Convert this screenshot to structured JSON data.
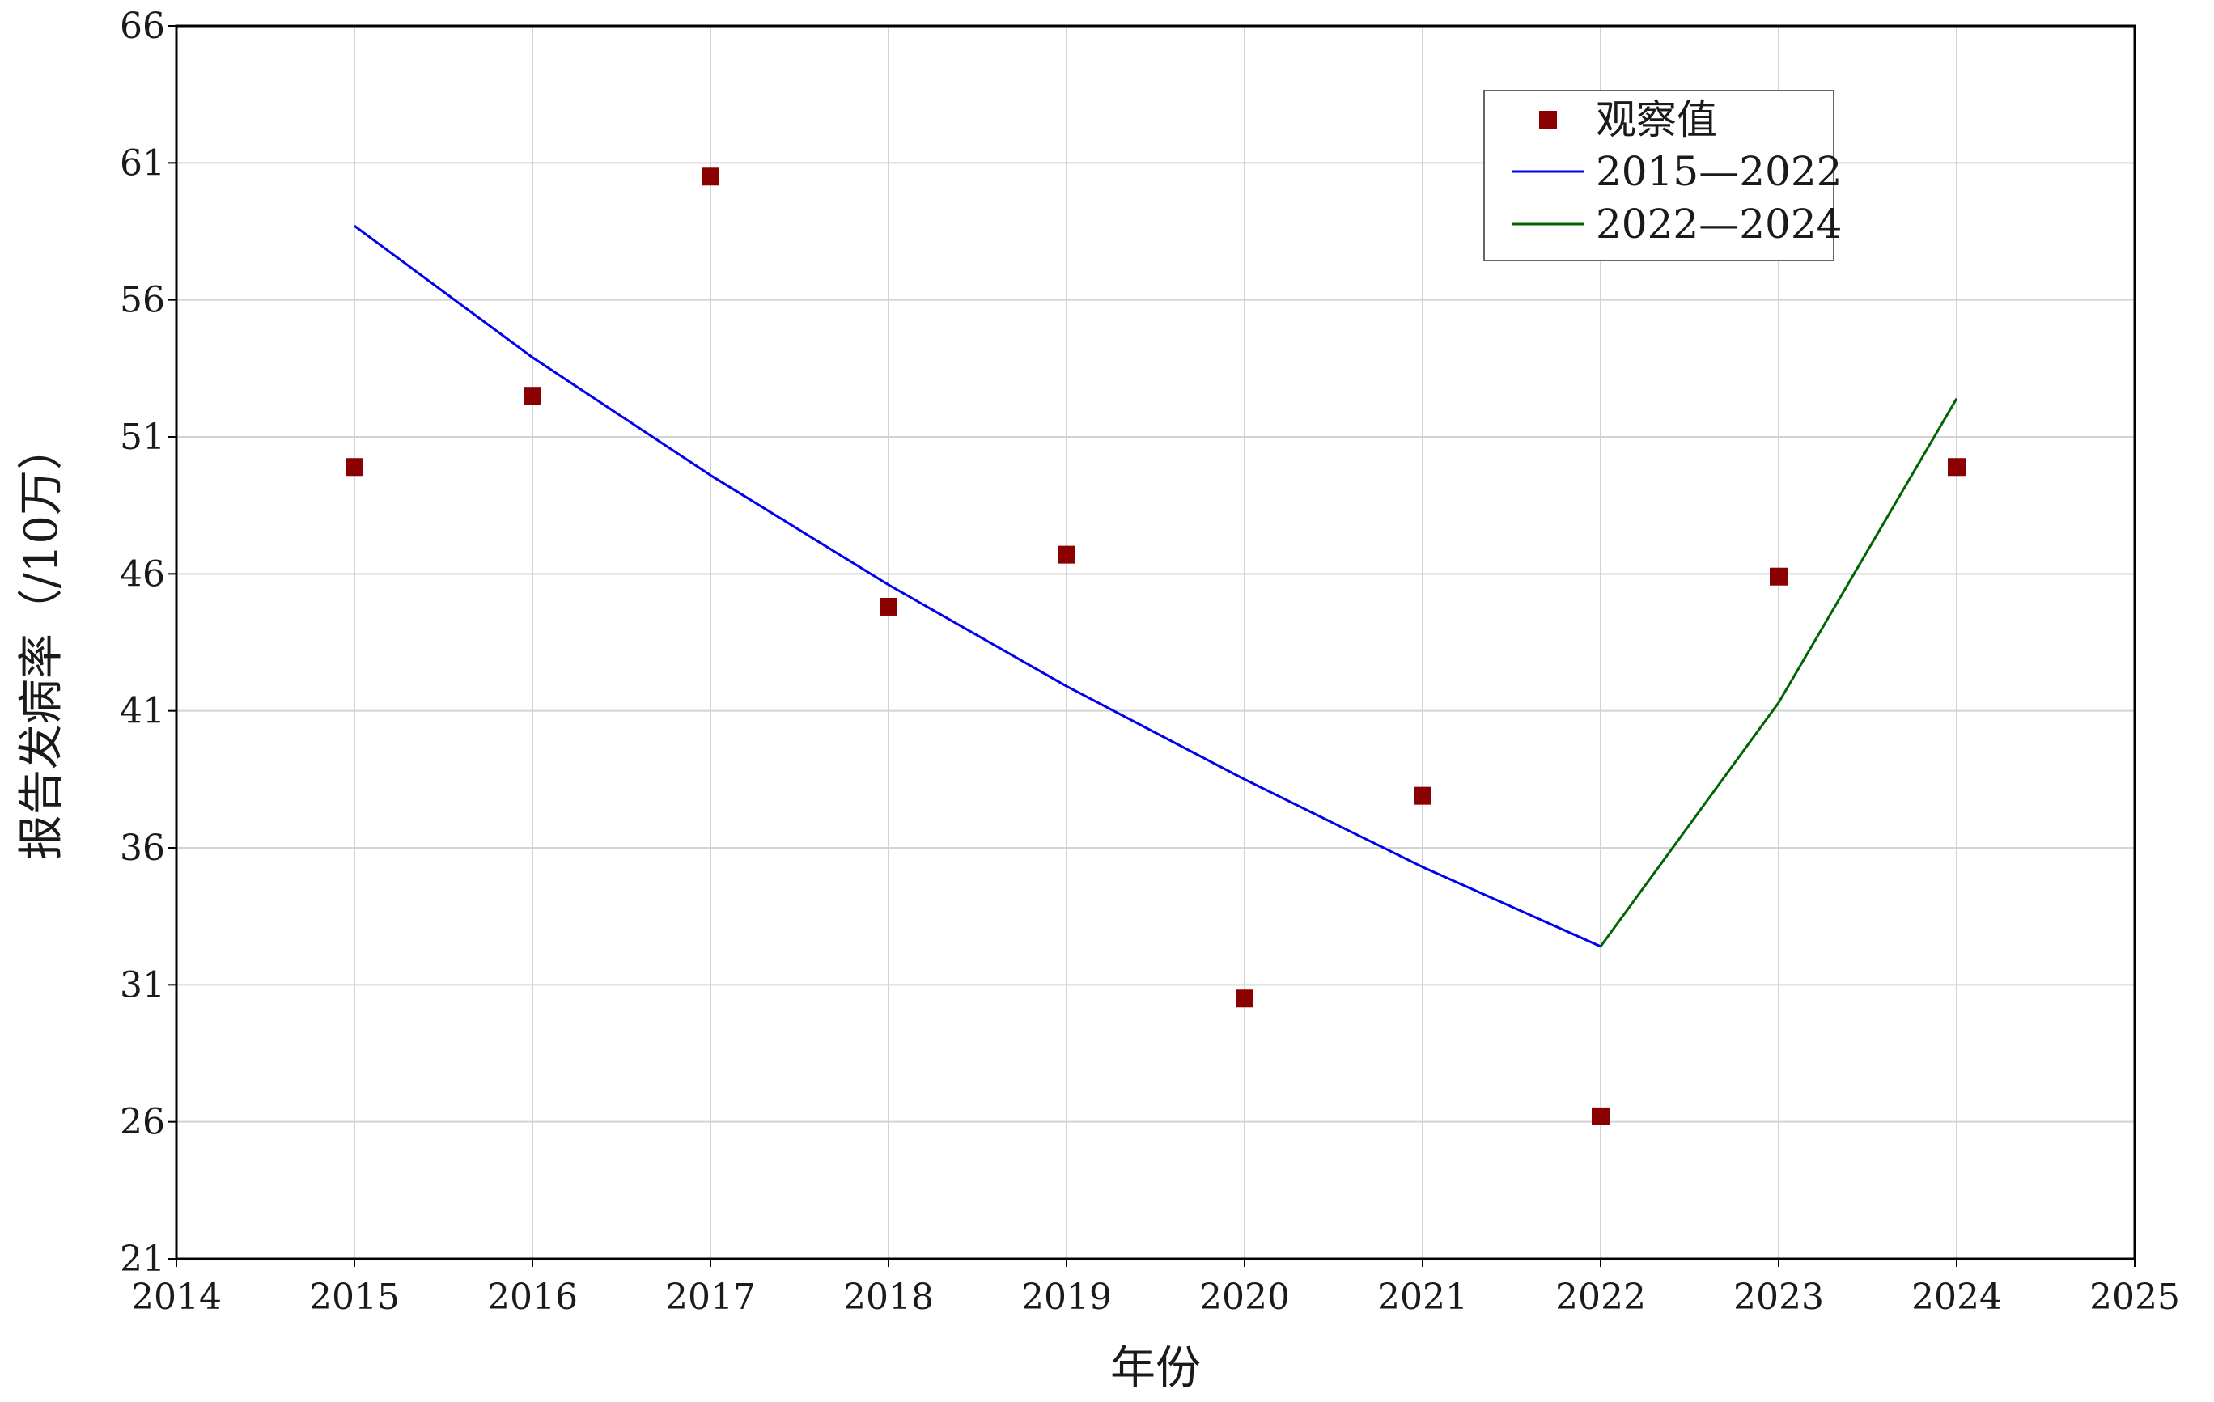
{
  "chart_data": {
    "type": "line",
    "title": "",
    "xlabel": "年份",
    "ylabel": "报告发病率（/10万）",
    "xlim": [
      2014,
      2025
    ],
    "ylim": [
      21,
      66
    ],
    "xticks": [
      2014,
      2015,
      2016,
      2017,
      2018,
      2019,
      2020,
      2021,
      2022,
      2023,
      2024,
      2025
    ],
    "yticks": [
      21,
      26,
      31,
      36,
      41,
      46,
      51,
      56,
      61,
      66
    ],
    "grid": true,
    "legend_position": "top-right",
    "series": [
      {
        "name": "观察值",
        "kind": "scatter",
        "marker": "square",
        "color": "#8B0000",
        "x": [
          2015,
          2016,
          2017,
          2018,
          2019,
          2020,
          2021,
          2022,
          2023,
          2024
        ],
        "y": [
          49.9,
          52.5,
          60.5,
          44.8,
          46.7,
          30.5,
          37.9,
          26.2,
          45.9,
          49.9
        ]
      },
      {
        "name": "2015—2022",
        "kind": "line",
        "color": "#0000EE",
        "x": [
          2015,
          2016,
          2017,
          2018,
          2019,
          2020,
          2021,
          2022
        ],
        "y": [
          58.7,
          53.9,
          49.6,
          45.6,
          41.9,
          38.5,
          35.3,
          32.4
        ]
      },
      {
        "name": "2022—2024",
        "kind": "line",
        "color": "#006400",
        "x": [
          2022,
          2023,
          2024
        ],
        "y": [
          32.4,
          41.3,
          52.4
        ]
      }
    ]
  }
}
